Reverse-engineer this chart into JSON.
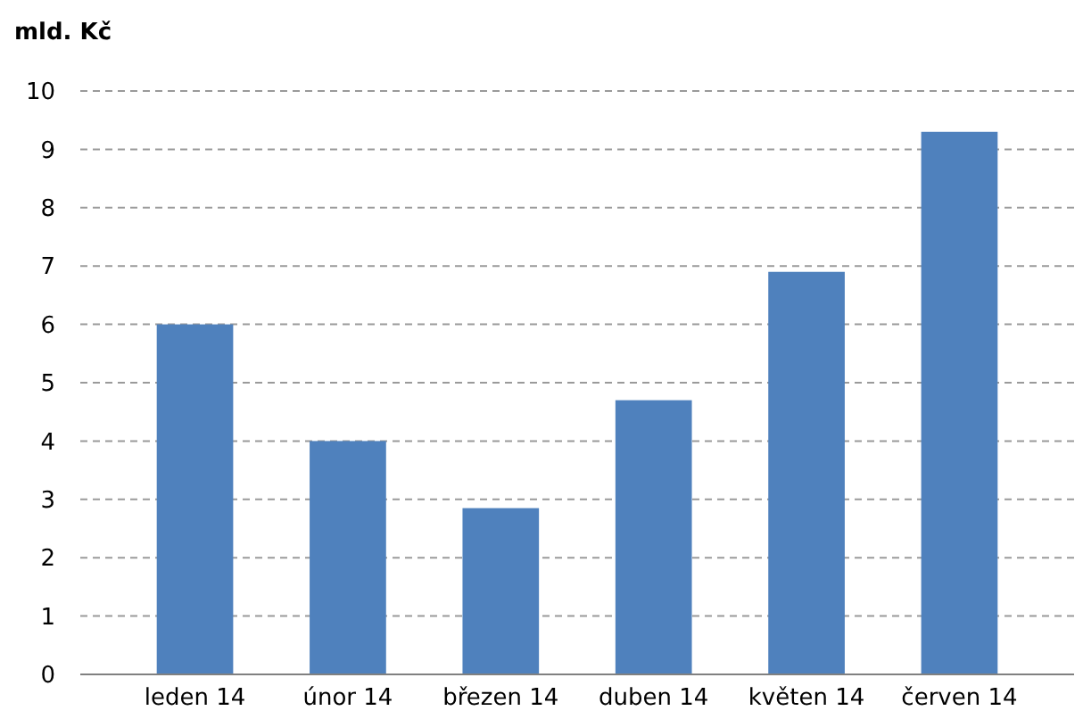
{
  "chart_data": {
    "type": "bar",
    "ylabel": "mld. Kč",
    "categories": [
      "leden 14",
      "únor 14",
      "březen 14",
      "duben 14",
      "květen 14",
      "červen 14"
    ],
    "values": [
      6.0,
      4.0,
      2.85,
      4.7,
      6.9,
      9.3
    ],
    "color": "#4f81bd",
    "ylim": [
      0,
      10
    ],
    "yticks": [
      0,
      1,
      2,
      3,
      4,
      5,
      6,
      7,
      8,
      9,
      10
    ],
    "grid": "y"
  }
}
